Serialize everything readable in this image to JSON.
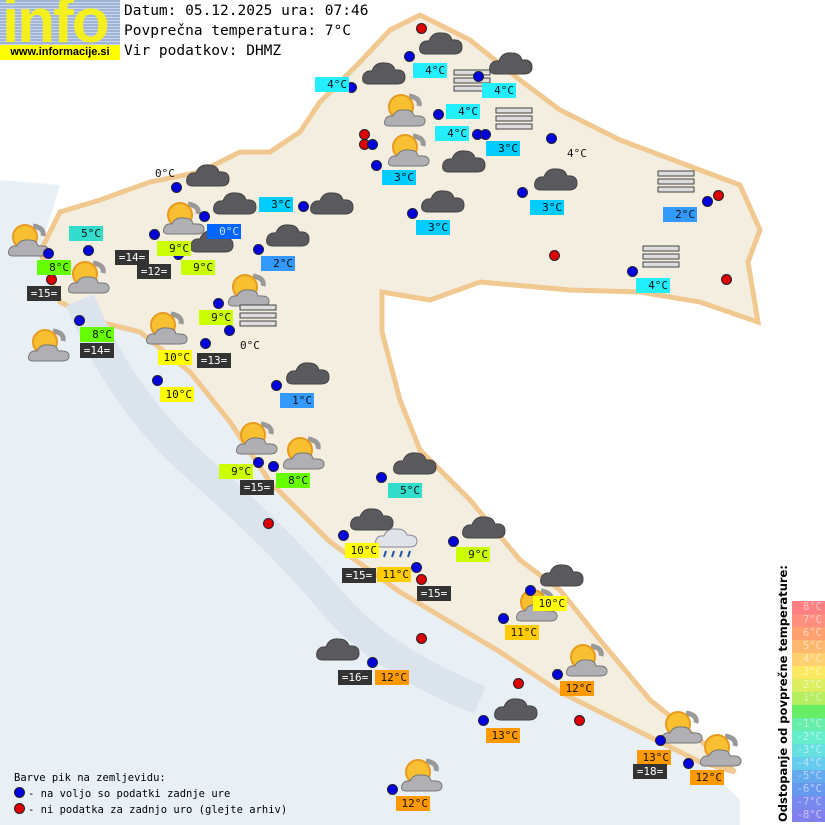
{
  "header": {
    "logo_text": "info",
    "site": "www.informacije.si",
    "date_line": "Datum: 05.12.2025 ura: 07:46",
    "avg_temp_line": "Povprečna temperatura: 7°C",
    "source_line": "Vir podatkov: DHMZ"
  },
  "labels": [
    {
      "text": "4°C",
      "bg": "#22eeff"
    },
    {
      "text": "4°C",
      "bg": "#22eeff"
    },
    {
      "text": "4°C",
      "bg": "#22eeff"
    },
    {
      "text": "4°C",
      "bg": "#22eeff"
    },
    {
      "text": "4°C",
      "bg": "#22eeff"
    },
    {
      "text": "3°C",
      "bg": "#00ccff"
    },
    {
      "text": "4°C",
      "bg": ""
    },
    {
      "text": "3°C",
      "bg": "#00ccff"
    },
    {
      "text": "3°C",
      "bg": "#00ccff"
    },
    {
      "text": "3°C",
      "bg": "#00ccff"
    },
    {
      "text": "3°C",
      "bg": "#00ccff"
    },
    {
      "text": "0°C",
      "bg": ""
    },
    {
      "text": "5°C",
      "bg": "#33ddcc"
    },
    {
      "text": "0°C",
      "bg": "#0066ff"
    },
    {
      "text": "9°C",
      "bg": "#ccff00"
    },
    {
      "text": "9°C",
      "bg": "#ccff00"
    },
    {
      "text": "2°C",
      "bg": "#3399ff"
    },
    {
      "text": "2°C",
      "bg": "#3399ff"
    },
    {
      "text": "4°C",
      "bg": "#22eeff"
    },
    {
      "text": "=14=",
      "bg": "#333333"
    },
    {
      "text": "=12=",
      "bg": "#333333"
    },
    {
      "text": "8°C",
      "bg": "#66ff00"
    },
    {
      "text": "=15=",
      "bg": "#333333"
    },
    {
      "text": "8°C",
      "bg": "#66ff00"
    },
    {
      "text": "=14=",
      "bg": "#333333"
    },
    {
      "text": "9°C",
      "bg": "#ccff00"
    },
    {
      "text": "0°C",
      "bg": ""
    },
    {
      "text": "10°C",
      "bg": "#ffff00"
    },
    {
      "text": "=13=",
      "bg": "#333333"
    },
    {
      "text": "10°C",
      "bg": "#ffff00"
    },
    {
      "text": "1°C",
      "bg": "#3399ff"
    },
    {
      "text": "9°C",
      "bg": "#ccff00"
    },
    {
      "text": "=15=",
      "bg": "#333333"
    },
    {
      "text": "8°C",
      "bg": "#66ff00"
    },
    {
      "text": "5°C",
      "bg": "#33ddcc"
    },
    {
      "text": "10°C",
      "bg": "#ffff00"
    },
    {
      "text": "9°C",
      "bg": "#ccff00"
    },
    {
      "text": "=15=",
      "bg": "#333333"
    },
    {
      "text": "11°C",
      "bg": "#ffcc00"
    },
    {
      "text": "=15=",
      "bg": "#333333"
    },
    {
      "text": "10°C",
      "bg": "#ffff00"
    },
    {
      "text": "11°C",
      "bg": "#ffcc00"
    },
    {
      "text": "=16=",
      "bg": "#333333"
    },
    {
      "text": "12°C",
      "bg": "#ff9900"
    },
    {
      "text": "12°C",
      "bg": "#ff9900"
    },
    {
      "text": "13°C",
      "bg": "#ff9900"
    },
    {
      "text": "13°C",
      "bg": "#ff9900"
    },
    {
      "text": "=18=",
      "bg": "#333333"
    },
    {
      "text": "12°C",
      "bg": "#ff9900"
    },
    {
      "text": "12°C",
      "bg": "#ff9900"
    }
  ],
  "dot_colors": {
    "available": "#0000dd",
    "missing": "#dd0000"
  },
  "icons": [
    "cloud",
    "cloud",
    "cloud",
    "cloud",
    "cloud",
    "cloud",
    "cloud",
    "cloud",
    "cloud",
    "cloud",
    "cloud",
    "cloud",
    "cloud",
    "cloud",
    "cloud",
    "cloud",
    "cloud",
    "cloud",
    "sun-cloud",
    "sun-cloud",
    "sun-cloud",
    "sun-cloud",
    "sun-cloud",
    "sun-cloud",
    "sun-cloud",
    "sun-cloud",
    "sun-cloud",
    "sun-cloud",
    "sun-cloud",
    "sun-cloud",
    "sun-cloud",
    "sun-cloud",
    "sun-cloud",
    "fog",
    "fog",
    "fog",
    "fog",
    "fog",
    "rain"
  ],
  "legend": {
    "title": "Barve pik na zemljevidu:",
    "available": "- na voljo so podatki zadnje ure",
    "missing": "- ni podatka za zadnjo uro (glejte arhiv)"
  },
  "scale": {
    "title": "Odstopanje od povprečne temperature:",
    "steps": [
      {
        "text": "8°C",
        "color": "#ff8080"
      },
      {
        "text": "7°C",
        "color": "#ff9080"
      },
      {
        "text": "6°C",
        "color": "#ffa070"
      },
      {
        "text": "5°C",
        "color": "#ffb870"
      },
      {
        "text": "4°C",
        "color": "#ffd070"
      },
      {
        "text": "3°C",
        "color": "#fbe860"
      },
      {
        "text": "2°C",
        "color": "#ddee60"
      },
      {
        "text": "1°C",
        "color": "#b5ee60"
      },
      {
        "text": "",
        "color": "#66ee66"
      },
      {
        "text": "-1°C",
        "color": "#66eeaa"
      },
      {
        "text": "-2°C",
        "color": "#66eecc"
      },
      {
        "text": "-3°C",
        "color": "#66e0e0"
      },
      {
        "text": "-4°C",
        "color": "#66ccee"
      },
      {
        "text": "-5°C",
        "color": "#66aaee"
      },
      {
        "text": "-6°C",
        "color": "#6699ee"
      },
      {
        "text": "-7°C",
        "color": "#7788ee"
      },
      {
        "text": "-8°C",
        "color": "#8080ee"
      }
    ]
  }
}
